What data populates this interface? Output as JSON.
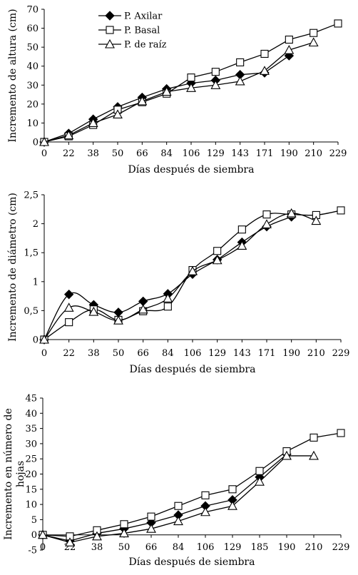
{
  "chart_data": [
    {
      "type": "line",
      "xlabel": "Días después de siembra",
      "ylabel": "Incremento de altura (cm)",
      "categories": [
        "0",
        "22",
        "38",
        "50",
        "66",
        "84",
        "106",
        "129",
        "143",
        "171",
        "190",
        "210",
        "229"
      ],
      "ylim": [
        0,
        70
      ],
      "yticks": [
        "0",
        "10",
        "20",
        "30",
        "40",
        "50",
        "60",
        "70"
      ],
      "legend": {
        "position": "top-left"
      },
      "series": [
        {
          "name": "P. Axilar",
          "marker": "diamond",
          "values": [
            0,
            4.5,
            12,
            18.5,
            23.5,
            28,
            31,
            32.5,
            35.5,
            36.5,
            45.5,
            null,
            null
          ]
        },
        {
          "name": "P. Basal",
          "marker": "square",
          "values": [
            0,
            3,
            9,
            17,
            21,
            25.5,
            34,
            37,
            42,
            46.5,
            54,
            57.5,
            62.5
          ]
        },
        {
          "name": "P. de raíz",
          "marker": "triangle",
          "values": [
            0,
            3.5,
            10,
            14.5,
            21.5,
            26.5,
            28.5,
            30,
            32,
            37.5,
            48.5,
            52.5,
            null
          ]
        }
      ]
    },
    {
      "type": "line",
      "xlabel": "Días después de siembra",
      "ylabel": "Incremento de diámetro (cm)",
      "categories": [
        "0",
        "22",
        "38",
        "50",
        "66",
        "84",
        "106",
        "129",
        "143",
        "171",
        "190",
        "210",
        "229"
      ],
      "ylim": [
        0,
        2.5
      ],
      "yticks": [
        "0",
        "0,5",
        "1",
        "1,5",
        "2",
        "2,5"
      ],
      "series": [
        {
          "name": "P. Axilar",
          "marker": "diamond",
          "values": [
            0,
            0.78,
            0.6,
            0.47,
            0.66,
            0.79,
            1.13,
            1.38,
            1.68,
            1.95,
            2.12,
            null,
            null
          ]
        },
        {
          "name": "P. Basal",
          "marker": "square",
          "values": [
            0,
            0.3,
            0.52,
            0.34,
            0.49,
            0.57,
            1.2,
            1.53,
            1.9,
            2.16,
            2.16,
            2.15,
            2.23
          ]
        },
        {
          "name": "P. de raíz",
          "marker": "triangle",
          "values": [
            0,
            0.55,
            0.48,
            0.33,
            0.52,
            0.71,
            1.18,
            1.37,
            1.62,
            1.99,
            2.18,
            2.05,
            null
          ]
        }
      ]
    },
    {
      "type": "line",
      "xlabel": "Días después de siembra",
      "ylabel": "Incremento en número de hojas",
      "categories": [
        "0",
        "22",
        "38",
        "50",
        "66",
        "84",
        "106",
        "129",
        "185",
        "190",
        "210",
        "229"
      ],
      "ylim": [
        -5,
        45
      ],
      "yticks": [
        "-5",
        "0",
        "5",
        "10",
        "15",
        "20",
        "25",
        "30",
        "35",
        "40",
        "45"
      ],
      "series": [
        {
          "name": "P. Axilar",
          "marker": "diamond",
          "values": [
            0,
            -2,
            0.5,
            2,
            4,
            6.5,
            9.5,
            11.5,
            19,
            26.5,
            null,
            null
          ]
        },
        {
          "name": "P. Basal",
          "marker": "square",
          "values": [
            0,
            -0.5,
            1.5,
            3.5,
            6,
            9.5,
            13,
            15,
            21,
            27.5,
            32,
            33.5
          ]
        },
        {
          "name": "P. de raíz",
          "marker": "triangle",
          "values": [
            0,
            -2.5,
            -0.5,
            0.5,
            2,
            4.5,
            7.5,
            9.5,
            17.5,
            26,
            26,
            null
          ]
        }
      ]
    }
  ]
}
